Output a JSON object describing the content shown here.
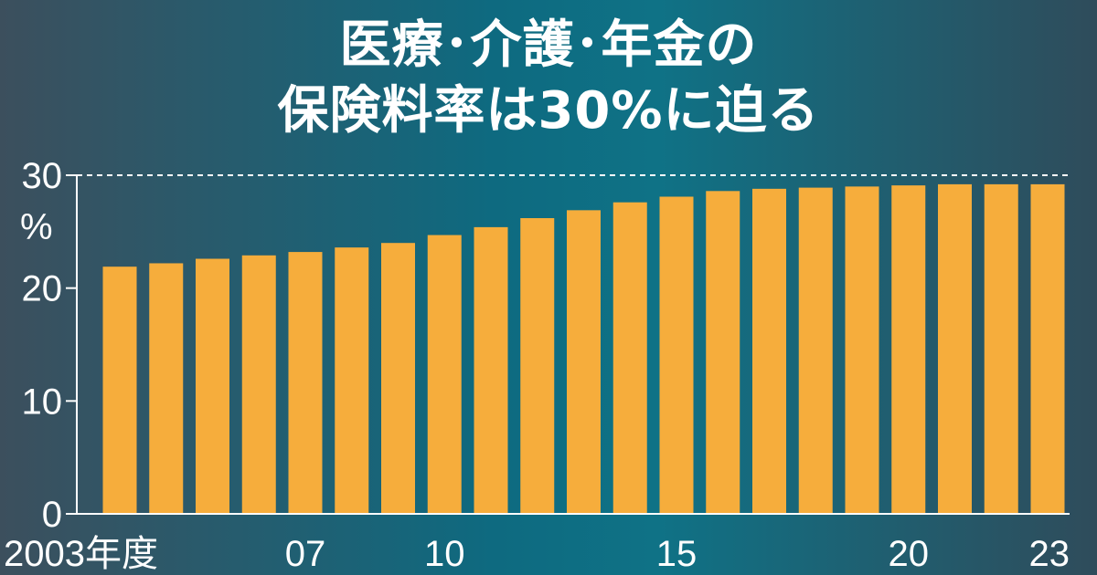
{
  "title_line1": "医療･介護･年金の",
  "title_line2": "保険料率は30%に迫る",
  "colors": {
    "bar": "#f6ad3c",
    "axis": "#ffffff",
    "text": "#ffffff"
  },
  "chart_data": {
    "type": "bar",
    "unit": "%",
    "x": [
      2003,
      2004,
      2005,
      2006,
      2007,
      2008,
      2009,
      2010,
      2011,
      2012,
      2013,
      2014,
      2015,
      2016,
      2017,
      2018,
      2019,
      2020,
      2021,
      2022,
      2023
    ],
    "values": [
      21.9,
      22.2,
      22.6,
      22.9,
      23.2,
      23.6,
      24.0,
      24.7,
      25.4,
      26.2,
      26.9,
      27.6,
      28.1,
      28.6,
      28.8,
      28.9,
      29.0,
      29.1,
      29.2,
      29.2,
      29.2
    ],
    "x_tick_labels": [
      {
        "x": 2003,
        "label": "2003年度"
      },
      {
        "x": 2007,
        "label": "07"
      },
      {
        "x": 2010,
        "label": "10"
      },
      {
        "x": 2015,
        "label": "15"
      },
      {
        "x": 2020,
        "label": "20"
      },
      {
        "x": 2023,
        "label": "23"
      }
    ],
    "y_ticks": [
      {
        "value": 0,
        "label": "0"
      },
      {
        "value": 10,
        "label": "10"
      },
      {
        "value": 20,
        "label": "20"
      },
      {
        "value": 30,
        "label": "30"
      }
    ],
    "ylim": [
      0,
      30
    ],
    "reference_line": {
      "value": 30,
      "style": "dashed"
    }
  }
}
